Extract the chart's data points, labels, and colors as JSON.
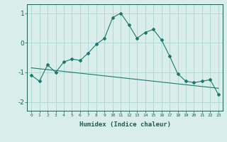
{
  "xlabel": "Humidex (Indice chaleur)",
  "ylabel": "",
  "x": [
    0,
    1,
    2,
    3,
    4,
    5,
    6,
    7,
    8,
    9,
    10,
    11,
    12,
    13,
    14,
    15,
    16,
    17,
    18,
    19,
    20,
    21,
    22,
    23
  ],
  "y_curve": [
    -1.1,
    -1.3,
    -0.75,
    -1.0,
    -0.65,
    -0.55,
    -0.6,
    -0.35,
    -0.05,
    0.15,
    0.85,
    1.0,
    0.6,
    0.15,
    0.35,
    0.45,
    0.1,
    -0.45,
    -1.05,
    -1.3,
    -1.35,
    -1.3,
    -1.25,
    -1.75
  ],
  "y_line": [
    -0.85,
    -0.88,
    -0.91,
    -0.94,
    -0.97,
    -1.0,
    -1.03,
    -1.06,
    -1.09,
    -1.12,
    -1.15,
    -1.18,
    -1.21,
    -1.24,
    -1.27,
    -1.3,
    -1.33,
    -1.36,
    -1.39,
    -1.42,
    -1.45,
    -1.48,
    -1.51,
    -1.54
  ],
  "line_color": "#1a7a6e",
  "bg_color": "#d9eeeb",
  "grid_color": "#b0d4ce",
  "text_color": "#1a5c54",
  "xlim": [
    -0.5,
    23.5
  ],
  "ylim": [
    -2.3,
    1.3
  ],
  "yticks": [
    -2,
    -1,
    0,
    1
  ],
  "xticks": [
    0,
    1,
    2,
    3,
    4,
    5,
    6,
    7,
    8,
    9,
    10,
    11,
    12,
    13,
    14,
    15,
    16,
    17,
    18,
    19,
    20,
    21,
    22,
    23
  ]
}
